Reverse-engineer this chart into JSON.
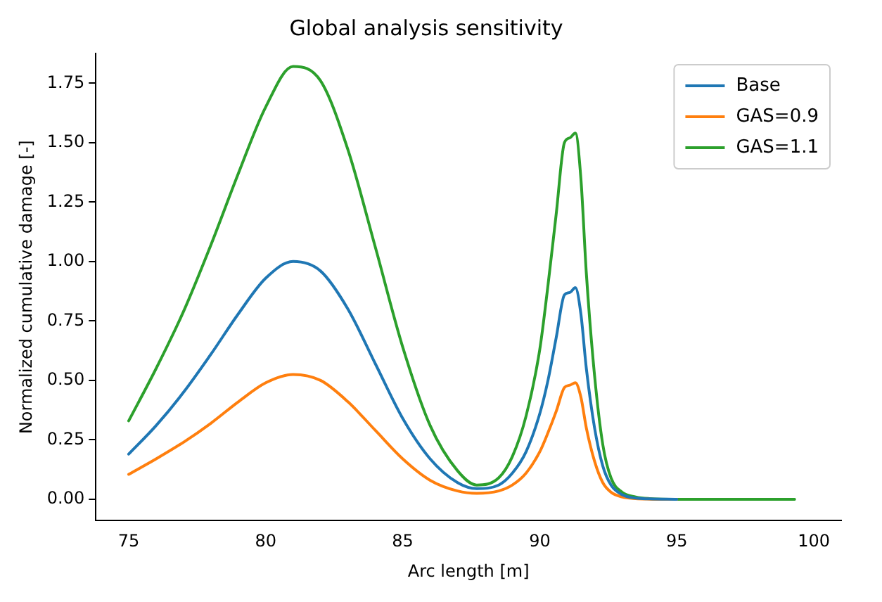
{
  "chart_data": {
    "type": "line",
    "title": "Global analysis sensitivity",
    "xlabel": "Arc length [m]",
    "ylabel": "Normalized cumulative damage [-]",
    "x": [
      75,
      76,
      77,
      78,
      79,
      80,
      81,
      82,
      83,
      84,
      85,
      86,
      87,
      87.7,
      88.5,
      89,
      89.5,
      90,
      90.3,
      90.6,
      90.9,
      91.1,
      91.3,
      91.5,
      91.7,
      92,
      92.3,
      92.6,
      93,
      93.5,
      94,
      95,
      97,
      99.3
    ],
    "series": [
      {
        "name": "Base",
        "color": "#1f77b4",
        "values": [
          0.19,
          0.31,
          0.45,
          0.61,
          0.78,
          0.93,
          1.0,
          0.96,
          0.8,
          0.57,
          0.34,
          0.17,
          0.07,
          0.045,
          0.06,
          0.11,
          0.2,
          0.36,
          0.5,
          0.68,
          0.86,
          0.87,
          0.89,
          0.78,
          0.55,
          0.3,
          0.14,
          0.06,
          0.02,
          0.005,
          0.002,
          0,
          null,
          null
        ]
      },
      {
        "name": "GAS=0.9",
        "color": "#ff7f0e",
        "values": [
          0.105,
          0.17,
          0.24,
          0.32,
          0.41,
          0.49,
          0.525,
          0.5,
          0.41,
          0.29,
          0.17,
          0.08,
          0.035,
          0.025,
          0.035,
          0.06,
          0.11,
          0.2,
          0.28,
          0.37,
          0.47,
          0.48,
          0.49,
          0.43,
          0.3,
          0.16,
          0.07,
          0.03,
          0.01,
          0.003,
          0.001,
          0,
          null,
          null
        ]
      },
      {
        "name": "GAS=1.1",
        "color": "#2ca02c",
        "values": [
          0.33,
          0.55,
          0.79,
          1.07,
          1.37,
          1.65,
          1.82,
          1.76,
          1.47,
          1.06,
          0.64,
          0.31,
          0.12,
          0.06,
          0.09,
          0.18,
          0.35,
          0.63,
          0.9,
          1.2,
          1.5,
          1.52,
          1.54,
          1.35,
          0.95,
          0.52,
          0.23,
          0.09,
          0.03,
          0.01,
          0.003,
          0,
          0,
          0
        ]
      }
    ],
    "xlim": [
      73.8,
      101
    ],
    "xticks": [
      75,
      80,
      85,
      90,
      95,
      100
    ],
    "ylim": [
      -0.09,
      1.875
    ],
    "yticks": [
      {
        "value": 0,
        "label": "0.00"
      },
      {
        "value": 0.25,
        "label": "0.25"
      },
      {
        "value": 0.5,
        "label": "0.50"
      },
      {
        "value": 0.75,
        "label": "0.75"
      },
      {
        "value": 1,
        "label": "1.00"
      },
      {
        "value": 1.25,
        "label": "1.25"
      },
      {
        "value": 1.5,
        "label": "1.50"
      },
      {
        "value": 1.75,
        "label": "1.75"
      }
    ],
    "legend": "top right",
    "grid": false,
    "marker": "none",
    "line_style": "solid"
  }
}
